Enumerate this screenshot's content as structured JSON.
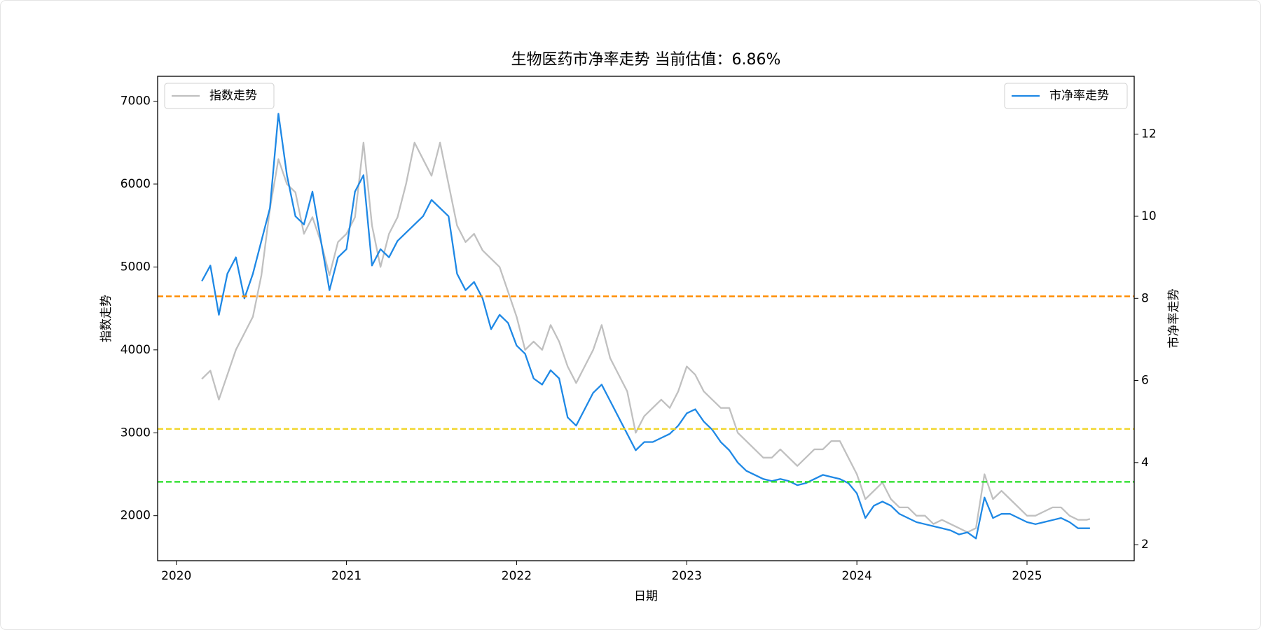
{
  "chart_data": {
    "type": "line",
    "title": "生物医药市净率走势 当前估值：6.86%",
    "x_label": "日期",
    "y_label": "指数走势",
    "y2_label": "市净率走势",
    "x": [
      2020.15,
      2020.2,
      2020.25,
      2020.3,
      2020.35,
      2020.4,
      2020.45,
      2020.5,
      2020.55,
      2020.6,
      2020.65,
      2020.7,
      2020.75,
      2020.8,
      2020.85,
      2020.9,
      2020.95,
      2021.0,
      2021.05,
      2021.1,
      2021.15,
      2021.2,
      2021.25,
      2021.3,
      2021.35,
      2021.4,
      2021.45,
      2021.5,
      2021.55,
      2021.6,
      2021.65,
      2021.7,
      2021.75,
      2021.8,
      2021.85,
      2021.9,
      2021.95,
      2022.0,
      2022.05,
      2022.1,
      2022.15,
      2022.2,
      2022.25,
      2022.3,
      2022.35,
      2022.4,
      2022.45,
      2022.5,
      2022.55,
      2022.6,
      2022.65,
      2022.7,
      2022.75,
      2022.8,
      2022.85,
      2022.9,
      2022.95,
      2023.0,
      2023.05,
      2023.1,
      2023.15,
      2023.2,
      2023.25,
      2023.3,
      2023.35,
      2023.4,
      2023.45,
      2023.5,
      2023.55,
      2023.6,
      2023.65,
      2023.7,
      2023.75,
      2023.8,
      2023.85,
      2023.9,
      2023.95,
      2024.0,
      2024.05,
      2024.1,
      2024.15,
      2024.2,
      2024.25,
      2024.3,
      2024.35,
      2024.4,
      2024.45,
      2024.5,
      2024.55,
      2024.6,
      2024.65,
      2024.7,
      2024.75,
      2024.8,
      2024.85,
      2024.9,
      2024.95,
      2025.0,
      2025.05,
      2025.1,
      2025.15,
      2025.2,
      2025.25,
      2025.3,
      2025.35,
      2025.37
    ],
    "series": [
      {
        "name": "指数走势",
        "color": "#c0c0c0",
        "axis": "y",
        "legend_loc": "upper left",
        "values": [
          3650,
          3750,
          3400,
          3700,
          4000,
          4200,
          4400,
          4900,
          5700,
          6300,
          6000,
          5900,
          5400,
          5600,
          5300,
          4900,
          5300,
          5400,
          5600,
          6500,
          5500,
          5000,
          5400,
          5600,
          6000,
          6500,
          6300,
          6100,
          6500,
          6000,
          5500,
          5300,
          5400,
          5200,
          5100,
          5000,
          4700,
          4400,
          4000,
          4100,
          4000,
          4300,
          4100,
          3800,
          3600,
          3800,
          4000,
          4300,
          3900,
          3700,
          3500,
          3000,
          3200,
          3300,
          3400,
          3300,
          3500,
          3800,
          3700,
          3500,
          3400,
          3300,
          3300,
          3000,
          2900,
          2800,
          2700,
          2700,
          2800,
          2700,
          2600,
          2700,
          2800,
          2800,
          2900,
          2900,
          2700,
          2500,
          2200,
          2300,
          2400,
          2200,
          2100,
          2100,
          2000,
          2000,
          1900,
          1950,
          1900,
          1850,
          1800,
          1850,
          2500,
          2200,
          2300,
          2200,
          2100,
          2000,
          2000,
          2050,
          2100,
          2100,
          2000,
          1950,
          1950,
          1960
        ]
      },
      {
        "name": "市净率走势",
        "color": "#1e88e5",
        "axis": "y2",
        "legend_loc": "upper right",
        "values": [
          8.42,
          8.8,
          7.6,
          8.6,
          9.0,
          8.0,
          8.6,
          9.4,
          10.2,
          12.5,
          11.0,
          10.0,
          9.8,
          10.6,
          9.4,
          8.2,
          9.0,
          9.2,
          10.6,
          11.0,
          8.8,
          9.2,
          9.0,
          9.4,
          9.6,
          9.8,
          10.0,
          10.4,
          10.2,
          10.0,
          8.6,
          8.2,
          8.4,
          8.0,
          7.25,
          7.6,
          7.4,
          6.85,
          6.65,
          6.05,
          5.9,
          6.25,
          6.05,
          5.1,
          4.9,
          5.3,
          5.7,
          5.9,
          5.5,
          5.1,
          4.7,
          4.3,
          4.5,
          4.5,
          4.6,
          4.7,
          4.9,
          5.2,
          5.3,
          5.0,
          4.8,
          4.5,
          4.3,
          4.0,
          3.8,
          3.7,
          3.6,
          3.55,
          3.6,
          3.55,
          3.45,
          3.5,
          3.6,
          3.7,
          3.65,
          3.6,
          3.5,
          3.25,
          2.65,
          2.95,
          3.05,
          2.95,
          2.75,
          2.65,
          2.55,
          2.5,
          2.45,
          2.4,
          2.35,
          2.25,
          2.3,
          2.15,
          3.15,
          2.65,
          2.75,
          2.75,
          2.65,
          2.55,
          2.5,
          2.55,
          2.6,
          2.65,
          2.55,
          2.4,
          2.4,
          2.4
        ]
      }
    ],
    "hlines": [
      {
        "value": 8.05,
        "color": "#ff8c00",
        "axis": "y2"
      },
      {
        "value": 4.82,
        "color": "#f0d41e",
        "axis": "y2"
      },
      {
        "value": 3.53,
        "color": "#22dd22",
        "axis": "y2"
      }
    ],
    "xlim": [
      2019.89,
      2025.63
    ],
    "xticks": [
      2020,
      2021,
      2022,
      2023,
      2024,
      2025
    ],
    "ylim": [
      1457,
      7300
    ],
    "yticks": [
      2000,
      3000,
      4000,
      5000,
      6000,
      7000
    ],
    "y2lim": [
      1.61,
      13.41
    ],
    "y2ticks": [
      2,
      4,
      6,
      8,
      10,
      12
    ],
    "grid": false
  }
}
